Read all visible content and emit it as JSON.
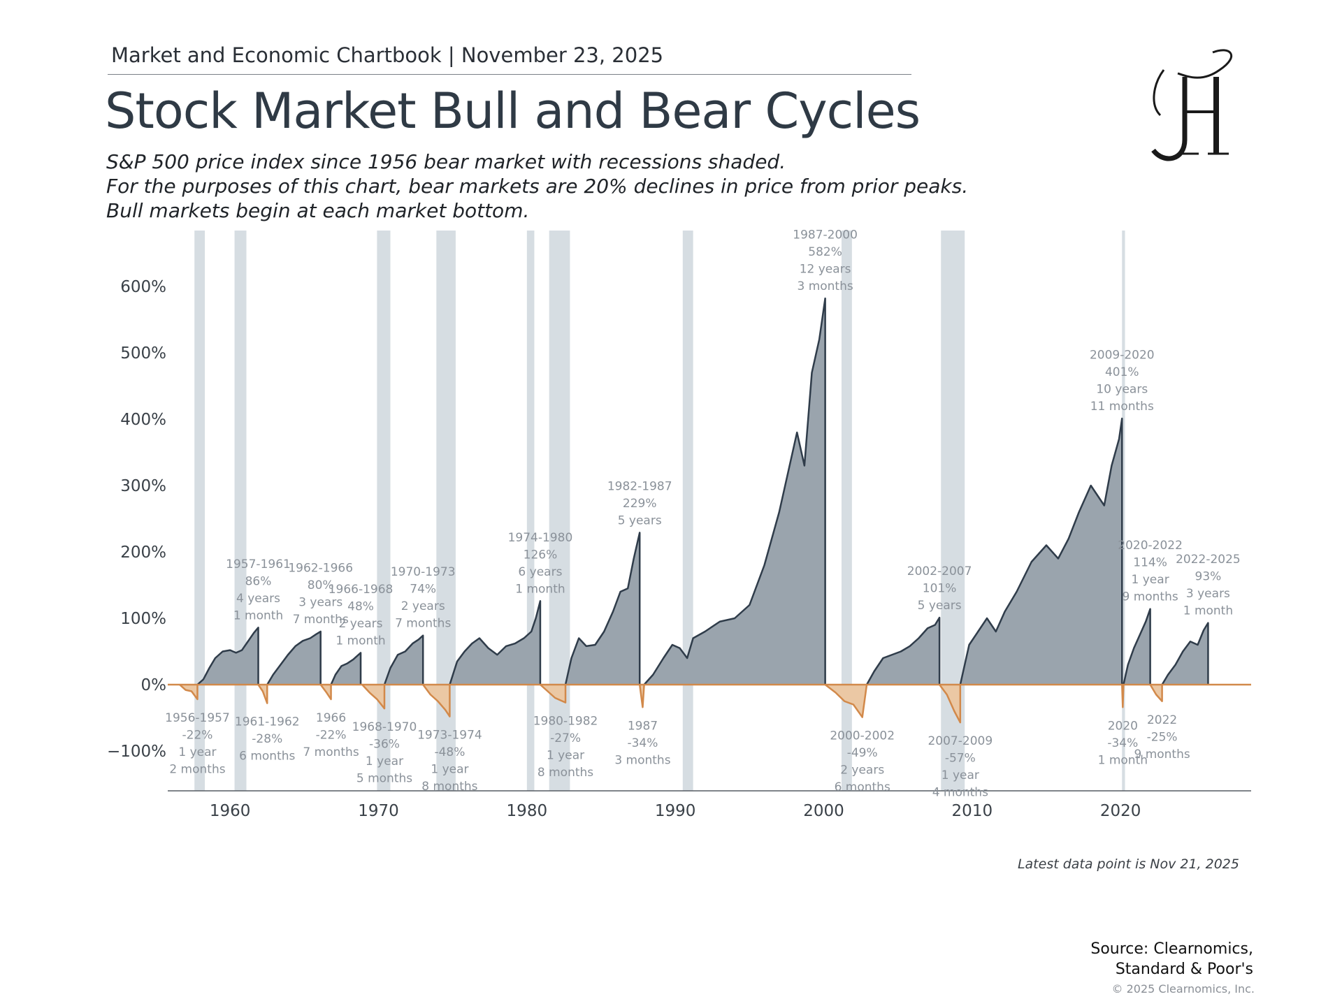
{
  "header": {
    "text": "Market and Economic Chartbook | November 23, 2025"
  },
  "title": "Stock Market Bull and Bear Cycles",
  "subtitle": {
    "line1": "S&P 500 price index since 1956 bear market with recessions shaded.",
    "line2": "For the purposes of this chart, bear markets are 20% declines in price from prior peaks.",
    "line3": "Bull markets begin at each market bottom."
  },
  "logo": {
    "icon": "jh-monogram-logo",
    "letters": "JH"
  },
  "footer": {
    "note": "Latest data point is Nov 21, 2025",
    "source_line1": "Source: Clearnomics,",
    "source_line2": "Standard & Poor's",
    "copyright": "© 2025 Clearnomics, Inc."
  },
  "colors": {
    "bull_fill": "#9aa4ad",
    "bull_line": "#2f3c4a",
    "bear_fill": "#ebc8a4",
    "bear_line": "#d2894a",
    "recession": "#d6dde2",
    "label": "#8a9199",
    "axis_text": "#3a4148"
  },
  "chart_data": {
    "type": "area",
    "xlim": [
      1955.8,
      2028.8
    ],
    "ylim": [
      -160,
      680
    ],
    "x_ticks": [
      1960,
      1970,
      1980,
      1990,
      2000,
      2010,
      2020
    ],
    "y_ticks": [
      600,
      500,
      400,
      300,
      200,
      100,
      0,
      -100
    ],
    "y_tick_labels": [
      "600%",
      "500%",
      "400%",
      "300%",
      "200%",
      "100%",
      "0%",
      "−100%"
    ],
    "recessions": [
      [
        1957.6,
        1958.3
      ],
      [
        1960.3,
        1961.1
      ],
      [
        1969.9,
        1970.8
      ],
      [
        1973.9,
        1975.2
      ],
      [
        1980.0,
        1980.5
      ],
      [
        1981.5,
        1982.9
      ],
      [
        1990.5,
        1991.2
      ],
      [
        2001.2,
        2001.9
      ],
      [
        2007.9,
        2009.5
      ],
      [
        2020.1,
        2020.3
      ]
    ],
    "bull_markets": [
      {
        "label": [
          "1957-1961",
          "86%",
          "4 years",
          "1 month"
        ],
        "points": [
          [
            1957.8,
            0
          ],
          [
            1958.2,
            8
          ],
          [
            1958.6,
            25
          ],
          [
            1959.0,
            40
          ],
          [
            1959.5,
            50
          ],
          [
            1960.0,
            52
          ],
          [
            1960.4,
            48
          ],
          [
            1960.8,
            52
          ],
          [
            1961.2,
            65
          ],
          [
            1961.6,
            78
          ],
          [
            1961.9,
            86
          ]
        ]
      },
      {
        "label": [
          "1962-1966",
          "80%",
          "3 years",
          "7 months"
        ],
        "points": [
          [
            1962.5,
            0
          ],
          [
            1962.9,
            15
          ],
          [
            1963.4,
            30
          ],
          [
            1963.9,
            45
          ],
          [
            1964.4,
            58
          ],
          [
            1964.9,
            66
          ],
          [
            1965.4,
            70
          ],
          [
            1965.8,
            76
          ],
          [
            1966.1,
            80
          ]
        ]
      },
      {
        "label": [
          "1966-1968",
          "48%",
          "2 years",
          "1 month"
        ],
        "points": [
          [
            1966.8,
            0
          ],
          [
            1967.1,
            15
          ],
          [
            1967.5,
            28
          ],
          [
            1967.9,
            32
          ],
          [
            1968.3,
            38
          ],
          [
            1968.8,
            48
          ]
        ]
      },
      {
        "label": [
          "1970-1973",
          "74%",
          "2 years",
          "7 months"
        ],
        "points": [
          [
            1970.4,
            0
          ],
          [
            1970.8,
            25
          ],
          [
            1971.3,
            45
          ],
          [
            1971.8,
            50
          ],
          [
            1972.3,
            62
          ],
          [
            1972.7,
            68
          ],
          [
            1973.0,
            74
          ]
        ]
      },
      {
        "label": [
          "1974-1980",
          "126%",
          "6 years",
          "1 month"
        ],
        "points": [
          [
            1974.8,
            0
          ],
          [
            1975.3,
            35
          ],
          [
            1975.8,
            50
          ],
          [
            1976.3,
            62
          ],
          [
            1976.8,
            70
          ],
          [
            1977.4,
            55
          ],
          [
            1978.0,
            45
          ],
          [
            1978.6,
            58
          ],
          [
            1979.2,
            62
          ],
          [
            1979.8,
            70
          ],
          [
            1980.3,
            80
          ],
          [
            1980.6,
            100
          ],
          [
            1980.9,
            126
          ]
        ]
      },
      {
        "label": [
          "1982-1987",
          "229%",
          "5 years"
        ],
        "points": [
          [
            1982.6,
            0
          ],
          [
            1983.0,
            40
          ],
          [
            1983.5,
            70
          ],
          [
            1984.0,
            58
          ],
          [
            1984.6,
            60
          ],
          [
            1985.2,
            80
          ],
          [
            1985.8,
            110
          ],
          [
            1986.3,
            140
          ],
          [
            1986.8,
            145
          ],
          [
            1987.2,
            190
          ],
          [
            1987.6,
            229
          ]
        ]
      },
      {
        "label": [
          "1987-2000",
          "582%",
          "12 years",
          "3 months"
        ],
        "points": [
          [
            1987.9,
            0
          ],
          [
            1988.5,
            15
          ],
          [
            1989.2,
            40
          ],
          [
            1989.8,
            60
          ],
          [
            1990.3,
            55
          ],
          [
            1990.8,
            40
          ],
          [
            1991.2,
            70
          ],
          [
            1992.0,
            80
          ],
          [
            1993.0,
            95
          ],
          [
            1994.0,
            100
          ],
          [
            1995.0,
            120
          ],
          [
            1996.0,
            180
          ],
          [
            1997.0,
            260
          ],
          [
            1997.6,
            320
          ],
          [
            1998.2,
            380
          ],
          [
            1998.7,
            330
          ],
          [
            1999.2,
            470
          ],
          [
            1999.7,
            520
          ],
          [
            2000.1,
            582
          ]
        ]
      },
      {
        "label": [
          "2002-2007",
          "101%",
          "5 years"
        ],
        "points": [
          [
            2002.9,
            0
          ],
          [
            2003.4,
            20
          ],
          [
            2004.0,
            40
          ],
          [
            2004.6,
            45
          ],
          [
            2005.2,
            50
          ],
          [
            2005.8,
            58
          ],
          [
            2006.4,
            70
          ],
          [
            2007.0,
            85
          ],
          [
            2007.5,
            90
          ],
          [
            2007.8,
            101
          ]
        ]
      },
      {
        "label": [
          "2009-2020",
          "401%",
          "10 years",
          "11 months"
        ],
        "points": [
          [
            2009.2,
            0
          ],
          [
            2009.8,
            60
          ],
          [
            2010.4,
            80
          ],
          [
            2011.0,
            100
          ],
          [
            2011.6,
            80
          ],
          [
            2012.2,
            110
          ],
          [
            2013.0,
            140
          ],
          [
            2014.0,
            185
          ],
          [
            2015.0,
            210
          ],
          [
            2015.8,
            190
          ],
          [
            2016.5,
            220
          ],
          [
            2017.2,
            260
          ],
          [
            2018.0,
            300
          ],
          [
            2018.9,
            270
          ],
          [
            2019.4,
            330
          ],
          [
            2019.9,
            370
          ],
          [
            2020.1,
            401
          ]
        ]
      },
      {
        "label": [
          "2020-2022",
          "114%",
          "1 year",
          "9 months"
        ],
        "points": [
          [
            2020.2,
            0
          ],
          [
            2020.5,
            30
          ],
          [
            2020.9,
            55
          ],
          [
            2021.3,
            75
          ],
          [
            2021.7,
            95
          ],
          [
            2022.0,
            114
          ]
        ]
      },
      {
        "label": [
          "2022-2025",
          "93%",
          "3 years",
          "1 month"
        ],
        "points": [
          [
            2022.8,
            0
          ],
          [
            2023.2,
            15
          ],
          [
            2023.7,
            30
          ],
          [
            2024.2,
            50
          ],
          [
            2024.7,
            65
          ],
          [
            2025.2,
            60
          ],
          [
            2025.6,
            82
          ],
          [
            2025.9,
            93
          ]
        ]
      }
    ],
    "bear_markets": [
      {
        "label": [
          "1956-1957",
          "-22%",
          "1 year",
          "2 months"
        ],
        "points": [
          [
            1956.6,
            0
          ],
          [
            1957.0,
            -8
          ],
          [
            1957.4,
            -10
          ],
          [
            1957.8,
            -22
          ]
        ]
      },
      {
        "label": [
          "1961-1962",
          "-28%",
          "6 months"
        ],
        "points": [
          [
            1961.9,
            0
          ],
          [
            1962.2,
            -10
          ],
          [
            1962.5,
            -28
          ]
        ]
      },
      {
        "label": [
          "1966",
          "-22%",
          "7 months"
        ],
        "points": [
          [
            1966.1,
            0
          ],
          [
            1966.5,
            -12
          ],
          [
            1966.8,
            -22
          ]
        ]
      },
      {
        "label": [
          "1968-1970",
          "-36%",
          "1 year",
          "5 months"
        ],
        "points": [
          [
            1968.9,
            0
          ],
          [
            1969.4,
            -12
          ],
          [
            1969.9,
            -22
          ],
          [
            1970.4,
            -36
          ]
        ]
      },
      {
        "label": [
          "1973-1974",
          "-48%",
          "1 year",
          "8 months"
        ],
        "points": [
          [
            1973.0,
            0
          ],
          [
            1973.5,
            -15
          ],
          [
            1974.0,
            -25
          ],
          [
            1974.5,
            -38
          ],
          [
            1974.8,
            -48
          ]
        ]
      },
      {
        "label": [
          "1980-1982",
          "-27%",
          "1 year",
          "8 months"
        ],
        "points": [
          [
            1980.9,
            0
          ],
          [
            1981.4,
            -10
          ],
          [
            1981.9,
            -20
          ],
          [
            1982.6,
            -27
          ]
        ]
      },
      {
        "label": [
          "1987",
          "-34%",
          "3 months"
        ],
        "points": [
          [
            1987.6,
            0
          ],
          [
            1987.8,
            -34
          ],
          [
            1987.9,
            0
          ]
        ]
      },
      {
        "label": [
          "2000-2002",
          "-49%",
          "2 years",
          "6 months"
        ],
        "points": [
          [
            2000.1,
            0
          ],
          [
            2000.8,
            -12
          ],
          [
            2001.4,
            -25
          ],
          [
            2002.0,
            -30
          ],
          [
            2002.6,
            -49
          ],
          [
            2002.9,
            0
          ]
        ]
      },
      {
        "label": [
          "2007-2009",
          "-57%",
          "1 year",
          "4 months"
        ],
        "points": [
          [
            2007.8,
            0
          ],
          [
            2008.3,
            -15
          ],
          [
            2008.8,
            -40
          ],
          [
            2009.2,
            -57
          ]
        ]
      },
      {
        "label": [
          "2020",
          "-34%",
          "1 month"
        ],
        "points": [
          [
            2020.1,
            0
          ],
          [
            2020.15,
            -34
          ],
          [
            2020.2,
            0
          ]
        ]
      },
      {
        "label": [
          "2022",
          "-25%",
          "9 months"
        ],
        "points": [
          [
            2022.0,
            0
          ],
          [
            2022.4,
            -15
          ],
          [
            2022.8,
            -25
          ]
        ]
      }
    ]
  }
}
